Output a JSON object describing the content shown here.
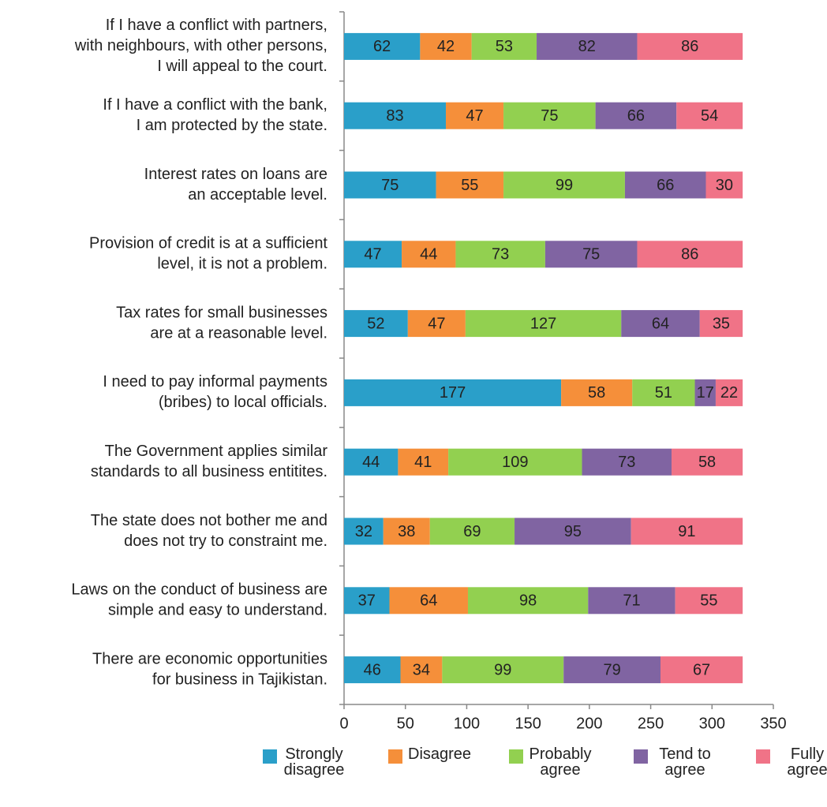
{
  "chart_data": {
    "type": "stacked_bar_horizontal",
    "categories": [
      [
        "If I have a conflict with partners,",
        "with neighbours, with other persons,",
        "I will appeal to the court."
      ],
      [
        "If I have a conflict with the bank,",
        "I am protected by the state."
      ],
      [
        "Interest rates on loans are",
        "an acceptable level."
      ],
      [
        "Provision of credit is at a sufficient",
        "level, it is not a problem."
      ],
      [
        "Tax rates for small businesses",
        "are at a reasonable level."
      ],
      [
        "I need to pay informal payments",
        "(bribes) to local officials."
      ],
      [
        "The Government applies similar",
        "standards to all business entitites."
      ],
      [
        "The state does not bother me and",
        "does not try to constraint me."
      ],
      [
        "Laws on the conduct of business are",
        "simple and easy to understand."
      ],
      [
        "There are economic opportunities",
        "for business in Tajikistan."
      ]
    ],
    "series": [
      {
        "name": "Strongly disagree",
        "color": "#2a9fc9",
        "values": [
          62,
          83,
          75,
          47,
          52,
          177,
          44,
          32,
          37,
          46
        ]
      },
      {
        "name": "Disagree",
        "color": "#f58f3a",
        "values": [
          42,
          47,
          55,
          44,
          47,
          58,
          41,
          38,
          64,
          34
        ]
      },
      {
        "name": "Probably agree",
        "color": "#92d050",
        "values": [
          53,
          75,
          99,
          73,
          127,
          51,
          109,
          69,
          98,
          99
        ]
      },
      {
        "name": "Tend to agree",
        "color": "#8064a2",
        "values": [
          82,
          66,
          66,
          75,
          64,
          17,
          73,
          95,
          71,
          79
        ]
      },
      {
        "name": "Fully agree",
        "color": "#f07387",
        "values": [
          86,
          54,
          30,
          86,
          35,
          22,
          58,
          91,
          55,
          67
        ]
      }
    ],
    "xlim": [
      0,
      350
    ],
    "xticks": [
      0,
      50,
      100,
      150,
      200,
      250,
      300,
      350
    ]
  }
}
